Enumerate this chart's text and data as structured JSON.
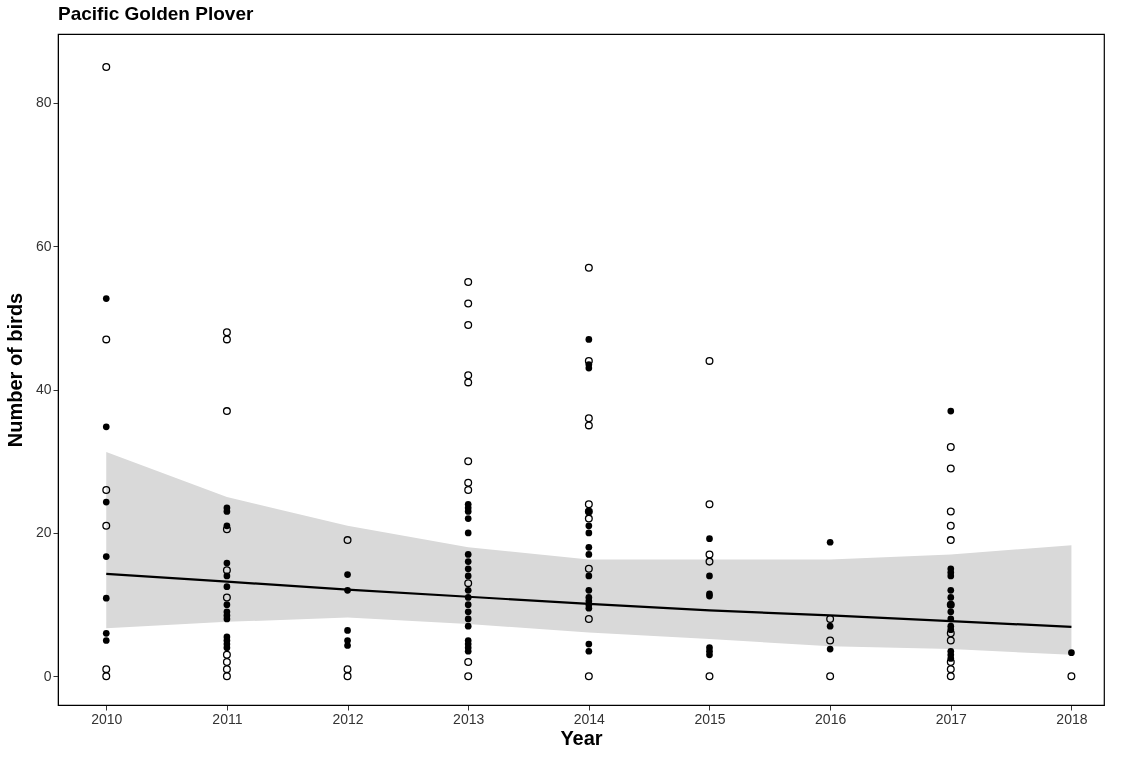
{
  "chart_data": {
    "type": "scatter",
    "title": "Pacific Golden Plover",
    "xlabel": "Year",
    "ylabel": "Number of birds",
    "xlim": [
      2009.6,
      2018.27
    ],
    "ylim": [
      -4,
      89.6
    ],
    "xticks": [
      2010,
      2011,
      2012,
      2013,
      2014,
      2015,
      2016,
      2017,
      2018
    ],
    "yticks": [
      0,
      20,
      40,
      60,
      80
    ],
    "grid": false,
    "series": [
      {
        "marker": "circle",
        "color": "#000000",
        "x": [
          2010,
          2010,
          2010,
          2010,
          2010,
          2010,
          2011,
          2011,
          2011,
          2011,
          2011,
          2011,
          2011,
          2011,
          2011,
          2011,
          2012,
          2012,
          2012,
          2013,
          2013,
          2013,
          2013,
          2013,
          2013,
          2013,
          2013,
          2013,
          2013,
          2013,
          2014,
          2014,
          2014,
          2014,
          2014,
          2014,
          2014,
          2014,
          2014,
          2014,
          2015,
          2015,
          2015,
          2015,
          2015,
          2016,
          2016,
          2016,
          2017,
          2017,
          2017,
          2017,
          2017,
          2017,
          2017,
          2017,
          2017,
          2017,
          2017,
          2018
        ],
        "values": [
          85,
          47,
          26,
          21,
          1,
          0,
          48,
          47,
          37,
          20.5,
          14.8,
          11,
          3,
          2,
          1,
          0,
          19,
          1,
          0,
          55,
          52,
          49,
          42,
          41,
          30,
          27,
          26,
          13,
          2,
          0,
          57,
          44,
          36,
          35,
          24,
          23,
          22,
          15,
          8,
          0,
          44,
          24,
          17,
          16,
          0,
          8,
          5,
          0,
          32,
          29,
          23,
          21,
          19,
          10,
          6,
          5,
          2,
          1,
          0,
          0
        ]
      },
      {
        "marker": "circle",
        "color": "#000000",
        "x": [
          2010,
          2010,
          2010,
          2010,
          2010,
          2010,
          2010,
          2011,
          2011,
          2011,
          2011,
          2011,
          2011,
          2011,
          2011,
          2011,
          2011,
          2011,
          2011,
          2011,
          2011,
          2012,
          2012,
          2012,
          2012,
          2012,
          2013,
          2013,
          2013,
          2013,
          2013,
          2013,
          2013,
          2013,
          2013,
          2013,
          2013,
          2013,
          2013,
          2013,
          2013,
          2013,
          2013,
          2013,
          2013,
          2014,
          2014,
          2014,
          2014,
          2014,
          2014,
          2014,
          2014,
          2014,
          2014,
          2014,
          2014,
          2014,
          2014,
          2014,
          2014,
          2015,
          2015,
          2015,
          2015,
          2015,
          2015,
          2015,
          2016,
          2016,
          2016,
          2017,
          2017,
          2017,
          2017,
          2017,
          2017,
          2017,
          2017,
          2017,
          2017,
          2017,
          2017,
          2017,
          2017,
          2018
        ],
        "values": [
          52.7,
          34.8,
          24.3,
          16.7,
          10.9,
          6,
          5,
          23.5,
          23,
          21,
          15.8,
          14,
          12.5,
          10,
          9,
          8.5,
          8,
          5.5,
          5,
          4.5,
          4,
          14.2,
          12,
          6.4,
          5,
          4.3,
          24,
          23.5,
          23,
          22,
          20,
          17,
          16,
          15,
          14,
          12,
          11,
          10,
          9,
          8,
          7,
          5,
          4.5,
          4,
          3.5,
          47,
          43.5,
          43,
          23,
          21,
          20,
          18,
          17,
          14,
          12,
          11,
          10.5,
          10,
          9.5,
          4.5,
          3.5,
          19.2,
          14,
          11.5,
          11.2,
          4,
          3.5,
          3,
          18.7,
          7,
          3.8,
          37,
          15,
          14.5,
          14,
          12,
          11,
          10,
          9,
          8,
          7,
          6.5,
          3.5,
          3,
          2.5,
          3.3
        ]
      },
      {
        "type": "line",
        "color": "#000000",
        "line_style": "solid",
        "x": [
          2010,
          2011,
          2012,
          2013,
          2014,
          2015,
          2016,
          2017,
          2018
        ],
        "values": [
          14.3,
          13.2,
          12.1,
          11.1,
          10.1,
          9.2,
          8.5,
          7.7,
          6.9
        ],
        "lower": [
          6.7,
          7.6,
          8.2,
          7.3,
          6.1,
          5.2,
          4.2,
          3.8,
          3
        ],
        "upper": [
          31.3,
          25,
          21,
          18,
          16.3,
          16.3,
          16.3,
          17,
          18.3
        ]
      }
    ]
  }
}
